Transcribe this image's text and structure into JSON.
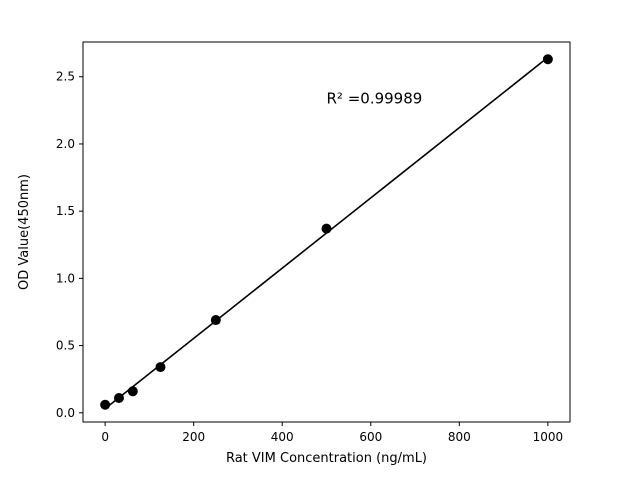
{
  "chart_data": {
    "type": "scatter",
    "title": "",
    "xlabel": "Rat VIM Concentration (ng/mL)",
    "ylabel": "OD Value(450nm)",
    "x": [
      0,
      31.25,
      62.5,
      125,
      250,
      500,
      1000
    ],
    "y": [
      0.06,
      0.11,
      0.16,
      0.34,
      0.69,
      1.37,
      2.63
    ],
    "xlim": [
      -50,
      1050
    ],
    "ylim": [
      -0.0685,
      2.7585
    ],
    "xticks": [
      {
        "value": 0,
        "label": "0"
      },
      {
        "value": 200,
        "label": "200"
      },
      {
        "value": 400,
        "label": "400"
      },
      {
        "value": 600,
        "label": "600"
      },
      {
        "value": 800,
        "label": "800"
      },
      {
        "value": 1000,
        "label": "1000"
      }
    ],
    "yticks": [
      {
        "value": 0.0,
        "label": "0.0"
      },
      {
        "value": 0.5,
        "label": "0.5"
      },
      {
        "value": 1.0,
        "label": "1.0"
      },
      {
        "value": 1.5,
        "label": "1.5"
      },
      {
        "value": 2.0,
        "label": "2.0"
      },
      {
        "value": 2.5,
        "label": "2.5"
      }
    ],
    "fit_line": {
      "slope": 0.002613,
      "intercept": 0.0308,
      "x_start": 0,
      "x_end": 1000
    },
    "annotation": {
      "text": "R² =0.99989",
      "x": 500,
      "y": 2.3
    },
    "grid": false,
    "marker_color": "#000000",
    "line_color": "#000000",
    "axis_color": "#000000",
    "background": "#ffffff"
  }
}
